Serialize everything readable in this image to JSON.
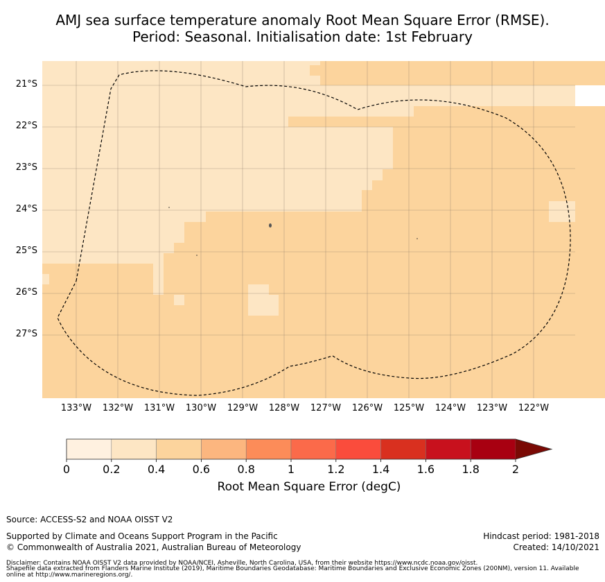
{
  "title": {
    "line1": "AMJ sea surface temperature anomaly Root Mean Square Error (RMSE).",
    "line2": "Period: Seasonal. Initialisation date: 1st February"
  },
  "map": {
    "lat_labels": [
      "21°S",
      "22°S",
      "23°S",
      "24°S",
      "25°S",
      "26°S",
      "27°S"
    ],
    "lon_labels": [
      "133°W",
      "132°W",
      "131°W",
      "130°W",
      "129°W",
      "128°W",
      "127°W",
      "126°W",
      "125°W",
      "124°W",
      "123°W",
      "122°W"
    ],
    "base_color": "#fde6c4",
    "higher_color": "#fcd49d",
    "lowest_color": "#fff1e0",
    "eez_boundary_style": "dashed"
  },
  "colorbar": {
    "ticks": [
      "0",
      "0.2",
      "0.4",
      "0.6",
      "0.8",
      "1",
      "1.2",
      "1.4",
      "1.6",
      "1.8",
      "2"
    ],
    "colors": [
      "#fff1e0",
      "#fde6c4",
      "#fcd49d",
      "#fcb67f",
      "#fc8c59",
      "#fb6a4a",
      "#fa4c3c",
      "#d9301f",
      "#c8111d",
      "#a80011"
    ],
    "extend_color": "#7a0a05",
    "label": "Root Mean Square Error (degC)"
  },
  "footer": {
    "source": "Source: ACCESS-S2 and NOAA OISST V2",
    "supported": "Supported by Climate and Oceans Support Program in the Pacific",
    "copyright": "© Commonwealth of Australia 2021, Australian Bureau of Meteorology",
    "hindcast": "Hindcast period: 1981-2018",
    "created": "Created: 14/10/2021",
    "disclaimer1": "Disclaimer: Contains NOAA OISST V2 data provided by NOAA/NCEI, Asheville, North Carolina, USA, from their website https://www.ncdc.noaa.gov/oisst.",
    "disclaimer2": "Shapefile data extracted from Flanders Marine Institute (2019), Maritime Boundaries Geodatabase: Maritime Boundaries and Exclusive Economic Zones (200NM), version 11. Available",
    "disclaimer3": "online at http://www.marineregions.org/."
  }
}
